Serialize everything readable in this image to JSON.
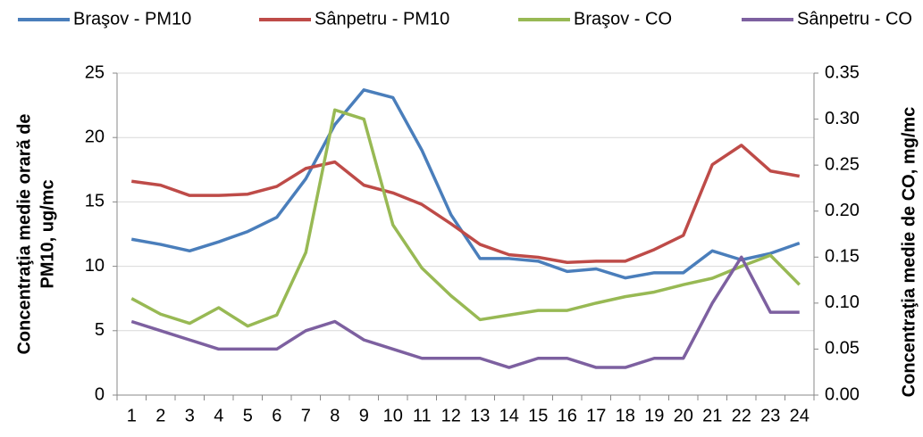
{
  "chart_data": {
    "type": "line",
    "categories": [
      1,
      2,
      3,
      4,
      5,
      6,
      7,
      8,
      9,
      10,
      11,
      12,
      13,
      14,
      15,
      16,
      17,
      18,
      19,
      20,
      21,
      22,
      23,
      24
    ],
    "series": [
      {
        "name": "Braşov - PM10",
        "color": "#4a7ebb",
        "values": [
          12.1,
          11.7,
          11.2,
          11.9,
          12.7,
          13.8,
          16.8,
          21.0,
          23.7,
          23.1,
          19.0,
          14.0,
          10.6,
          10.6,
          10.4,
          9.6,
          9.8,
          9.1,
          9.5,
          9.5,
          11.2,
          10.5,
          11.0,
          11.8
        ]
      },
      {
        "name": "Sânpetru - PM10",
        "color": "#be4b48",
        "values": [
          16.6,
          16.3,
          15.5,
          15.5,
          15.6,
          16.2,
          17.6,
          18.1,
          16.3,
          15.7,
          14.8,
          13.3,
          11.7,
          10.9,
          10.7,
          10.3,
          10.4,
          10.4,
          11.3,
          12.4,
          17.9,
          19.4,
          17.4,
          17.0
        ]
      },
      {
        "name": "Braşov - CO",
        "color": "#98b954",
        "axis": "y2",
        "values": [
          0.105,
          0.088,
          0.078,
          0.095,
          0.075,
          0.087,
          0.155,
          0.31,
          0.3,
          0.185,
          0.138,
          0.108,
          0.082,
          0.087,
          0.092,
          0.092,
          0.1,
          0.107,
          0.112,
          0.12,
          0.127,
          0.14,
          0.152,
          0.12
        ]
      },
      {
        "name": "Sânpetru - CO",
        "color": "#7d60a0",
        "axis": "y2",
        "values": [
          0.08,
          0.07,
          0.06,
          0.05,
          0.05,
          0.05,
          0.07,
          0.08,
          0.06,
          0.05,
          0.04,
          0.04,
          0.04,
          0.03,
          0.04,
          0.04,
          0.03,
          0.03,
          0.04,
          0.04,
          0.1,
          0.15,
          0.09,
          0.09
        ]
      }
    ],
    "ylabel": [
      "Concentraţia medie orară de",
      "PM10, ug/mc"
    ],
    "y2label": "Concentraţia medie de CO, mg/mc",
    "ylim": [
      0,
      25
    ],
    "yticks": [
      0,
      5,
      10,
      15,
      20,
      25
    ],
    "y2lim": [
      0,
      0.35
    ],
    "y2ticks": [
      {
        "value": 0,
        "label": "0.00"
      },
      {
        "value": 0.05,
        "label": "0.05"
      },
      {
        "value": 0.1,
        "label": "0.10"
      },
      {
        "value": 0.15,
        "label": "0.15"
      },
      {
        "value": 0.2,
        "label": "0.20"
      },
      {
        "value": 0.25,
        "label": "0.25"
      },
      {
        "value": 0.3,
        "label": "0.30"
      },
      {
        "value": 0.35,
        "label": "0.35"
      }
    ],
    "grid": true,
    "legend": "top"
  }
}
